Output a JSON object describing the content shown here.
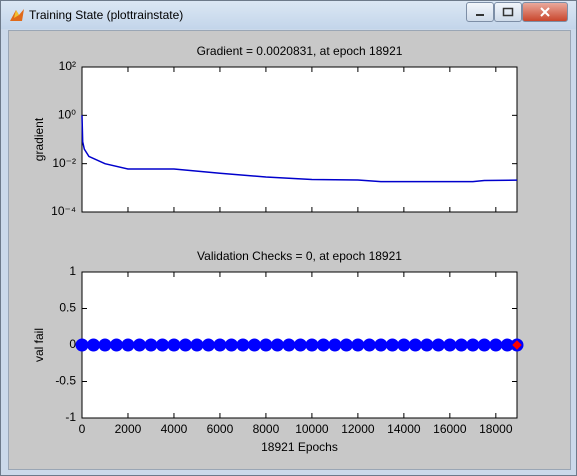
{
  "window": {
    "title": "Training State (plottrainstate)"
  },
  "chart_data": [
    {
      "type": "line",
      "title": "Gradient = 0.0020831, at epoch 18921",
      "ylabel": "gradient",
      "log_y": true,
      "show_xtick_labels": false,
      "xlim": [
        0,
        18921
      ],
      "xticks": [
        0,
        2000,
        4000,
        6000,
        8000,
        10000,
        12000,
        14000,
        16000,
        18000
      ],
      "ylim": [
        0.0001,
        100
      ],
      "yticks": [
        {
          "value": 0.0001,
          "label": "10⁻⁴"
        },
        {
          "value": 0.01,
          "label": "10⁻²"
        },
        {
          "value": 1,
          "label": "10⁰"
        },
        {
          "value": 100,
          "label": "10²"
        }
      ],
      "series": [
        {
          "color": "#0000cc",
          "x": [
            0,
            30,
            100,
            300,
            1000,
            2000,
            4000,
            6000,
            8000,
            10000,
            12000,
            13000,
            16000,
            17000,
            17500,
            18921
          ],
          "values": [
            1,
            0.08,
            0.04,
            0.02,
            0.01,
            0.006,
            0.006,
            0.004,
            0.0028,
            0.0022,
            0.0021,
            0.0018,
            0.0018,
            0.0018,
            0.002,
            0.0020831
          ]
        }
      ]
    },
    {
      "type": "scatter",
      "title": "Validation Checks = 0, at epoch 18921",
      "ylabel": "val fail",
      "xlabel": "18921 Epochs",
      "show_xtick_labels": true,
      "xlim": [
        0,
        18921
      ],
      "xticks": [
        0,
        2000,
        4000,
        6000,
        8000,
        10000,
        12000,
        14000,
        16000,
        18000
      ],
      "ylim": [
        -1,
        1
      ],
      "yticks": [
        -1,
        -0.5,
        0,
        0.5,
        1
      ],
      "series": [
        {
          "color": "#0000ff",
          "marker": "circle",
          "x": [
            0,
            500,
            1000,
            1500,
            2000,
            2500,
            3000,
            3500,
            4000,
            4500,
            5000,
            5500,
            6000,
            6500,
            7000,
            7500,
            8000,
            8500,
            9000,
            9500,
            10000,
            10500,
            11000,
            11500,
            12000,
            12500,
            13000,
            13500,
            14000,
            14500,
            15000,
            15500,
            16000,
            16500,
            17000,
            17500,
            18000,
            18500,
            18921
          ],
          "values": [
            0,
            0,
            0,
            0,
            0,
            0,
            0,
            0,
            0,
            0,
            0,
            0,
            0,
            0,
            0,
            0,
            0,
            0,
            0,
            0,
            0,
            0,
            0,
            0,
            0,
            0,
            0,
            0,
            0,
            0,
            0,
            0,
            0,
            0,
            0,
            0,
            0,
            0,
            0
          ]
        },
        {
          "color": "#ff0000",
          "marker": "diamond",
          "x": [
            18921
          ],
          "values": [
            0
          ]
        }
      ]
    }
  ]
}
